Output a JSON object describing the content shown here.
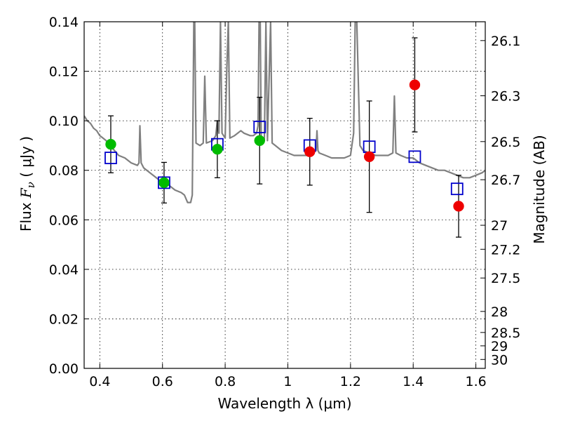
{
  "chart_data": {
    "type": "scatter",
    "xlabel": "Wavelength  λ (μm)",
    "ylabel": "Flux  F_ν  ( μJy )",
    "ylabel_parts": {
      "prefix": "Flux  ",
      "symbol": "F",
      "subscript": "ν",
      "units": "  ( μJy )"
    },
    "y2label": "Magnitude (AB)",
    "xlim": [
      0.35,
      1.63
    ],
    "ylim": [
      0.0,
      0.14
    ],
    "grid": true,
    "x_ticks": [
      0.4,
      0.6,
      0.8,
      1.0,
      1.2,
      1.4,
      1.6
    ],
    "x_tick_labels": [
      "0.4",
      "0.6",
      "0.8",
      "1",
      "1.2",
      "1.4",
      "1.6"
    ],
    "y_ticks": [
      0.0,
      0.02,
      0.04,
      0.06,
      0.08,
      0.1,
      0.12,
      0.14
    ],
    "y_tick_labels": [
      "0.00",
      "0.02",
      "0.04",
      "0.06",
      "0.08",
      "0.10",
      "0.12",
      "0.14"
    ],
    "y2_ticks": [
      {
        "label": "26.1",
        "flux": 0.1324
      },
      {
        "label": "26.3",
        "flux": 0.1101
      },
      {
        "label": "26.5",
        "flux": 0.0916
      },
      {
        "label": "26.7",
        "flux": 0.0762
      },
      {
        "label": "27",
        "flux": 0.0578
      },
      {
        "label": "27.2",
        "flux": 0.0481
      },
      {
        "label": "27.5",
        "flux": 0.0365
      },
      {
        "label": "28",
        "flux": 0.023
      },
      {
        "label": "28.5",
        "flux": 0.0145
      },
      {
        "label": "29",
        "flux": 0.0091
      },
      {
        "label": "30",
        "flux": 0.0036
      }
    ],
    "series": [
      {
        "kind": "spectrum",
        "color": "#808080",
        "points": [
          [
            0.35,
            0.102
          ],
          [
            0.36,
            0.1
          ],
          [
            0.37,
            0.099
          ],
          [
            0.38,
            0.097
          ],
          [
            0.39,
            0.096
          ],
          [
            0.4,
            0.094
          ],
          [
            0.41,
            0.093
          ],
          [
            0.42,
            0.092
          ],
          [
            0.43,
            0.09
          ],
          [
            0.44,
            0.089
          ],
          [
            0.46,
            0.086
          ],
          [
            0.48,
            0.085
          ],
          [
            0.5,
            0.083
          ],
          [
            0.52,
            0.082
          ],
          [
            0.525,
            0.083
          ],
          [
            0.528,
            0.098
          ],
          [
            0.532,
            0.083
          ],
          [
            0.54,
            0.081
          ],
          [
            0.56,
            0.079
          ],
          [
            0.58,
            0.077
          ],
          [
            0.6,
            0.075
          ],
          [
            0.62,
            0.074
          ],
          [
            0.64,
            0.072
          ],
          [
            0.66,
            0.071
          ],
          [
            0.67,
            0.07
          ],
          [
            0.68,
            0.067
          ],
          [
            0.69,
            0.067
          ],
          [
            0.695,
            0.07
          ],
          [
            0.7,
            0.14
          ],
          [
            0.703,
            0.14
          ],
          [
            0.707,
            0.091
          ],
          [
            0.72,
            0.09
          ],
          [
            0.73,
            0.091
          ],
          [
            0.735,
            0.118
          ],
          [
            0.74,
            0.091
          ],
          [
            0.76,
            0.092
          ],
          [
            0.77,
            0.094
          ],
          [
            0.775,
            0.1
          ],
          [
            0.78,
            0.095
          ],
          [
            0.785,
            0.14
          ],
          [
            0.79,
            0.095
          ],
          [
            0.8,
            0.093
          ],
          [
            0.805,
            0.12
          ],
          [
            0.81,
            0.14
          ],
          [
            0.815,
            0.093
          ],
          [
            0.83,
            0.094
          ],
          [
            0.84,
            0.095
          ],
          [
            0.85,
            0.096
          ],
          [
            0.86,
            0.095
          ],
          [
            0.88,
            0.094
          ],
          [
            0.89,
            0.094
          ],
          [
            0.9,
            0.095
          ],
          [
            0.905,
            0.098
          ],
          [
            0.908,
            0.14
          ],
          [
            0.912,
            0.14
          ],
          [
            0.915,
            0.093
          ],
          [
            0.925,
            0.092
          ],
          [
            0.93,
            0.14
          ],
          [
            0.935,
            0.092
          ],
          [
            0.945,
            0.14
          ],
          [
            0.95,
            0.091
          ],
          [
            0.96,
            0.09
          ],
          [
            0.98,
            0.088
          ],
          [
            1.0,
            0.087
          ],
          [
            1.02,
            0.086
          ],
          [
            1.04,
            0.086
          ],
          [
            1.06,
            0.086
          ],
          [
            1.08,
            0.087
          ],
          [
            1.09,
            0.088
          ],
          [
            1.093,
            0.096
          ],
          [
            1.096,
            0.088
          ],
          [
            1.1,
            0.087
          ],
          [
            1.12,
            0.086
          ],
          [
            1.14,
            0.085
          ],
          [
            1.16,
            0.085
          ],
          [
            1.18,
            0.085
          ],
          [
            1.2,
            0.086
          ],
          [
            1.21,
            0.095
          ],
          [
            1.215,
            0.14
          ],
          [
            1.22,
            0.14
          ],
          [
            1.23,
            0.09
          ],
          [
            1.24,
            0.088
          ],
          [
            1.26,
            0.087
          ],
          [
            1.28,
            0.086
          ],
          [
            1.3,
            0.086
          ],
          [
            1.32,
            0.086
          ],
          [
            1.335,
            0.087
          ],
          [
            1.34,
            0.11
          ],
          [
            1.345,
            0.087
          ],
          [
            1.36,
            0.086
          ],
          [
            1.38,
            0.085
          ],
          [
            1.4,
            0.085
          ],
          [
            1.42,
            0.083
          ],
          [
            1.44,
            0.082
          ],
          [
            1.46,
            0.081
          ],
          [
            1.48,
            0.08
          ],
          [
            1.5,
            0.08
          ],
          [
            1.52,
            0.079
          ],
          [
            1.54,
            0.078
          ],
          [
            1.56,
            0.077
          ],
          [
            1.58,
            0.077
          ],
          [
            1.6,
            0.078
          ],
          [
            1.62,
            0.079
          ],
          [
            1.63,
            0.08
          ]
        ]
      },
      {
        "kind": "model-points",
        "marker": "open-square",
        "color": "#0000cc",
        "points": [
          [
            0.435,
            0.085
          ],
          [
            0.605,
            0.075
          ],
          [
            0.775,
            0.0905
          ],
          [
            0.91,
            0.0975
          ],
          [
            1.07,
            0.09
          ],
          [
            1.26,
            0.0895
          ],
          [
            1.405,
            0.0855
          ],
          [
            1.54,
            0.0725
          ]
        ]
      },
      {
        "kind": "observed-optical",
        "marker": "filled-circle",
        "color": "#00bb00",
        "points": [
          {
            "x": 0.435,
            "y": 0.0905,
            "err": 0.0115
          },
          {
            "x": 0.605,
            "y": 0.075,
            "err": 0.0082
          },
          {
            "x": 0.775,
            "y": 0.0885,
            "err": 0.0115
          },
          {
            "x": 0.91,
            "y": 0.092,
            "err": 0.0175
          }
        ]
      },
      {
        "kind": "observed-infrared",
        "marker": "filled-circle",
        "color": "#ee0000",
        "points": [
          {
            "x": 1.07,
            "y": 0.0875,
            "err": 0.0135
          },
          {
            "x": 1.26,
            "y": 0.0855,
            "err": 0.0225
          },
          {
            "x": 1.405,
            "y": 0.1145,
            "err": 0.019
          },
          {
            "x": 1.545,
            "y": 0.0655,
            "err": 0.0125
          }
        ]
      }
    ]
  }
}
